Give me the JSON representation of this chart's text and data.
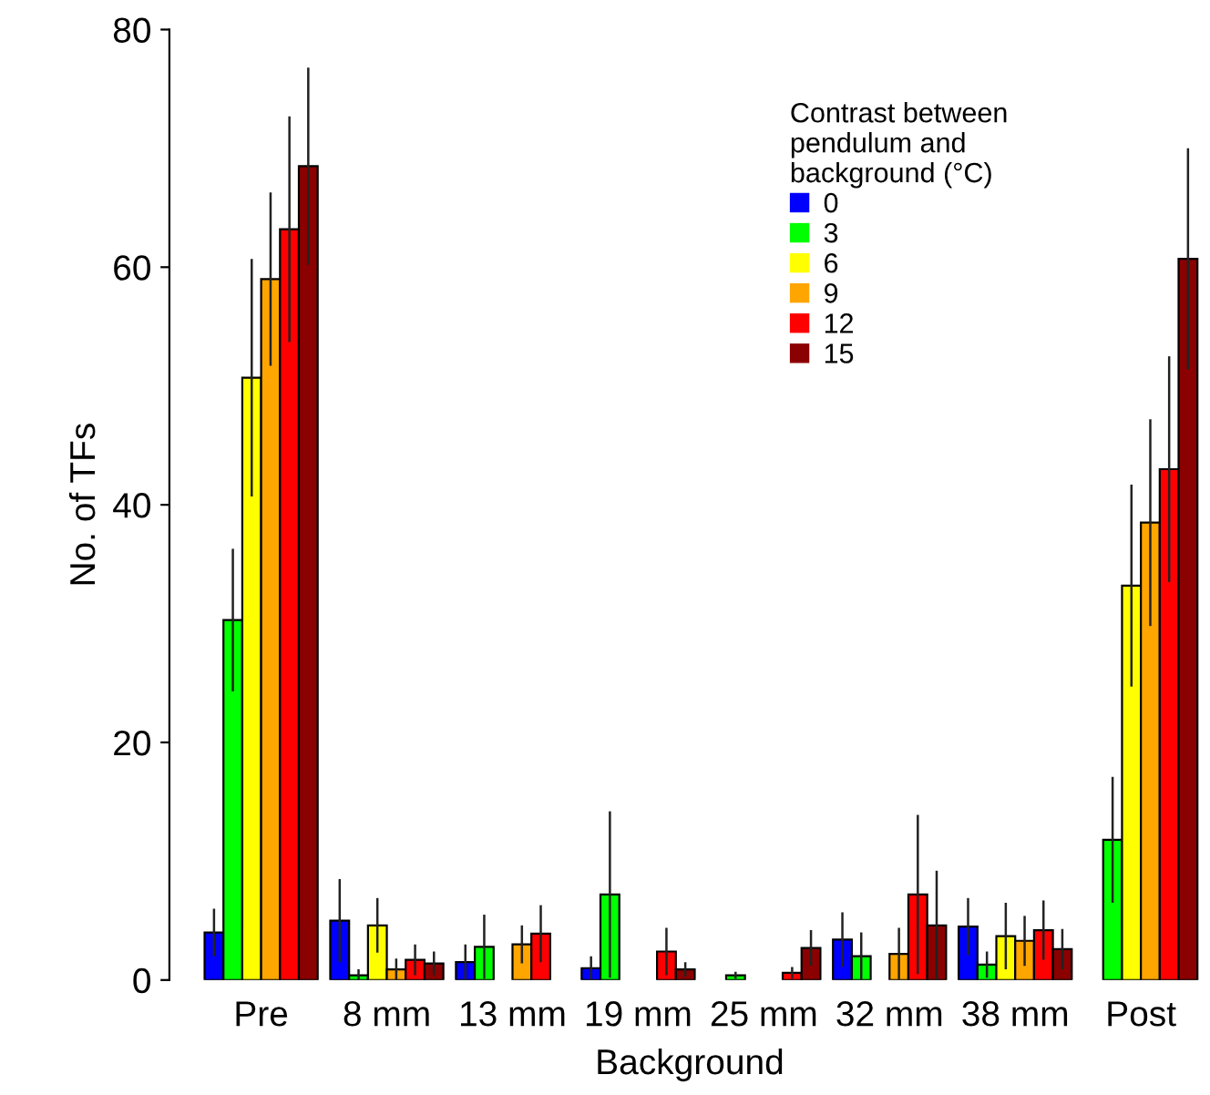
{
  "chart_data": {
    "type": "bar",
    "xlabel": "Background",
    "ylabel": "No. of TFs",
    "legend_title": "Contrast between\npendulum and\nbackground (°C)",
    "categories": [
      "Pre",
      "8 mm",
      "13 mm",
      "19 mm",
      "25 mm",
      "32 mm",
      "38 mm",
      "Post"
    ],
    "ylim": [
      0,
      80
    ],
    "yticks": [
      0,
      20,
      40,
      60,
      80
    ],
    "grid": false,
    "legend": "top right",
    "series": [
      {
        "name": "0",
        "color": "#0000ff",
        "values": [
          4.0,
          5.0,
          1.5,
          1.0,
          0,
          3.4,
          4.5,
          0
        ],
        "errors": [
          2.0,
          3.5,
          1.5,
          1.0,
          null,
          2.3,
          2.4,
          null
        ]
      },
      {
        "name": "3",
        "color": "#00ff00",
        "values": [
          30.3,
          0.4,
          2.8,
          7.2,
          0.4,
          2.0,
          1.3,
          11.8
        ],
        "errors": [
          6.0,
          0.5,
          2.7,
          7.0,
          0.3,
          2.0,
          1.1,
          5.3
        ]
      },
      {
        "name": "6",
        "color": "#ffff00",
        "values": [
          50.7,
          4.6,
          0,
          0,
          0,
          0,
          3.7,
          33.2
        ],
        "errors": [
          10.0,
          2.3,
          null,
          null,
          null,
          null,
          2.8,
          8.5
        ]
      },
      {
        "name": "9",
        "color": "#ffa500",
        "values": [
          59.0,
          0.9,
          3.0,
          0,
          0,
          2.2,
          3.3,
          38.5
        ],
        "errors": [
          7.3,
          0.9,
          1.6,
          null,
          null,
          2.2,
          2.1,
          8.7
        ]
      },
      {
        "name": "12",
        "color": "#ff0000",
        "values": [
          63.2,
          1.7,
          3.9,
          2.4,
          0.6,
          7.2,
          4.2,
          43.0
        ],
        "errors": [
          9.5,
          1.3,
          2.4,
          2.0,
          0.5,
          6.7,
          2.5,
          9.5
        ]
      },
      {
        "name": "15",
        "color": "#8b0000",
        "values": [
          68.5,
          1.4,
          0,
          0.9,
          2.7,
          4.6,
          2.6,
          60.7
        ],
        "errors": [
          8.3,
          1.0,
          null,
          0.6,
          1.5,
          4.6,
          1.7,
          9.3
        ]
      }
    ]
  }
}
